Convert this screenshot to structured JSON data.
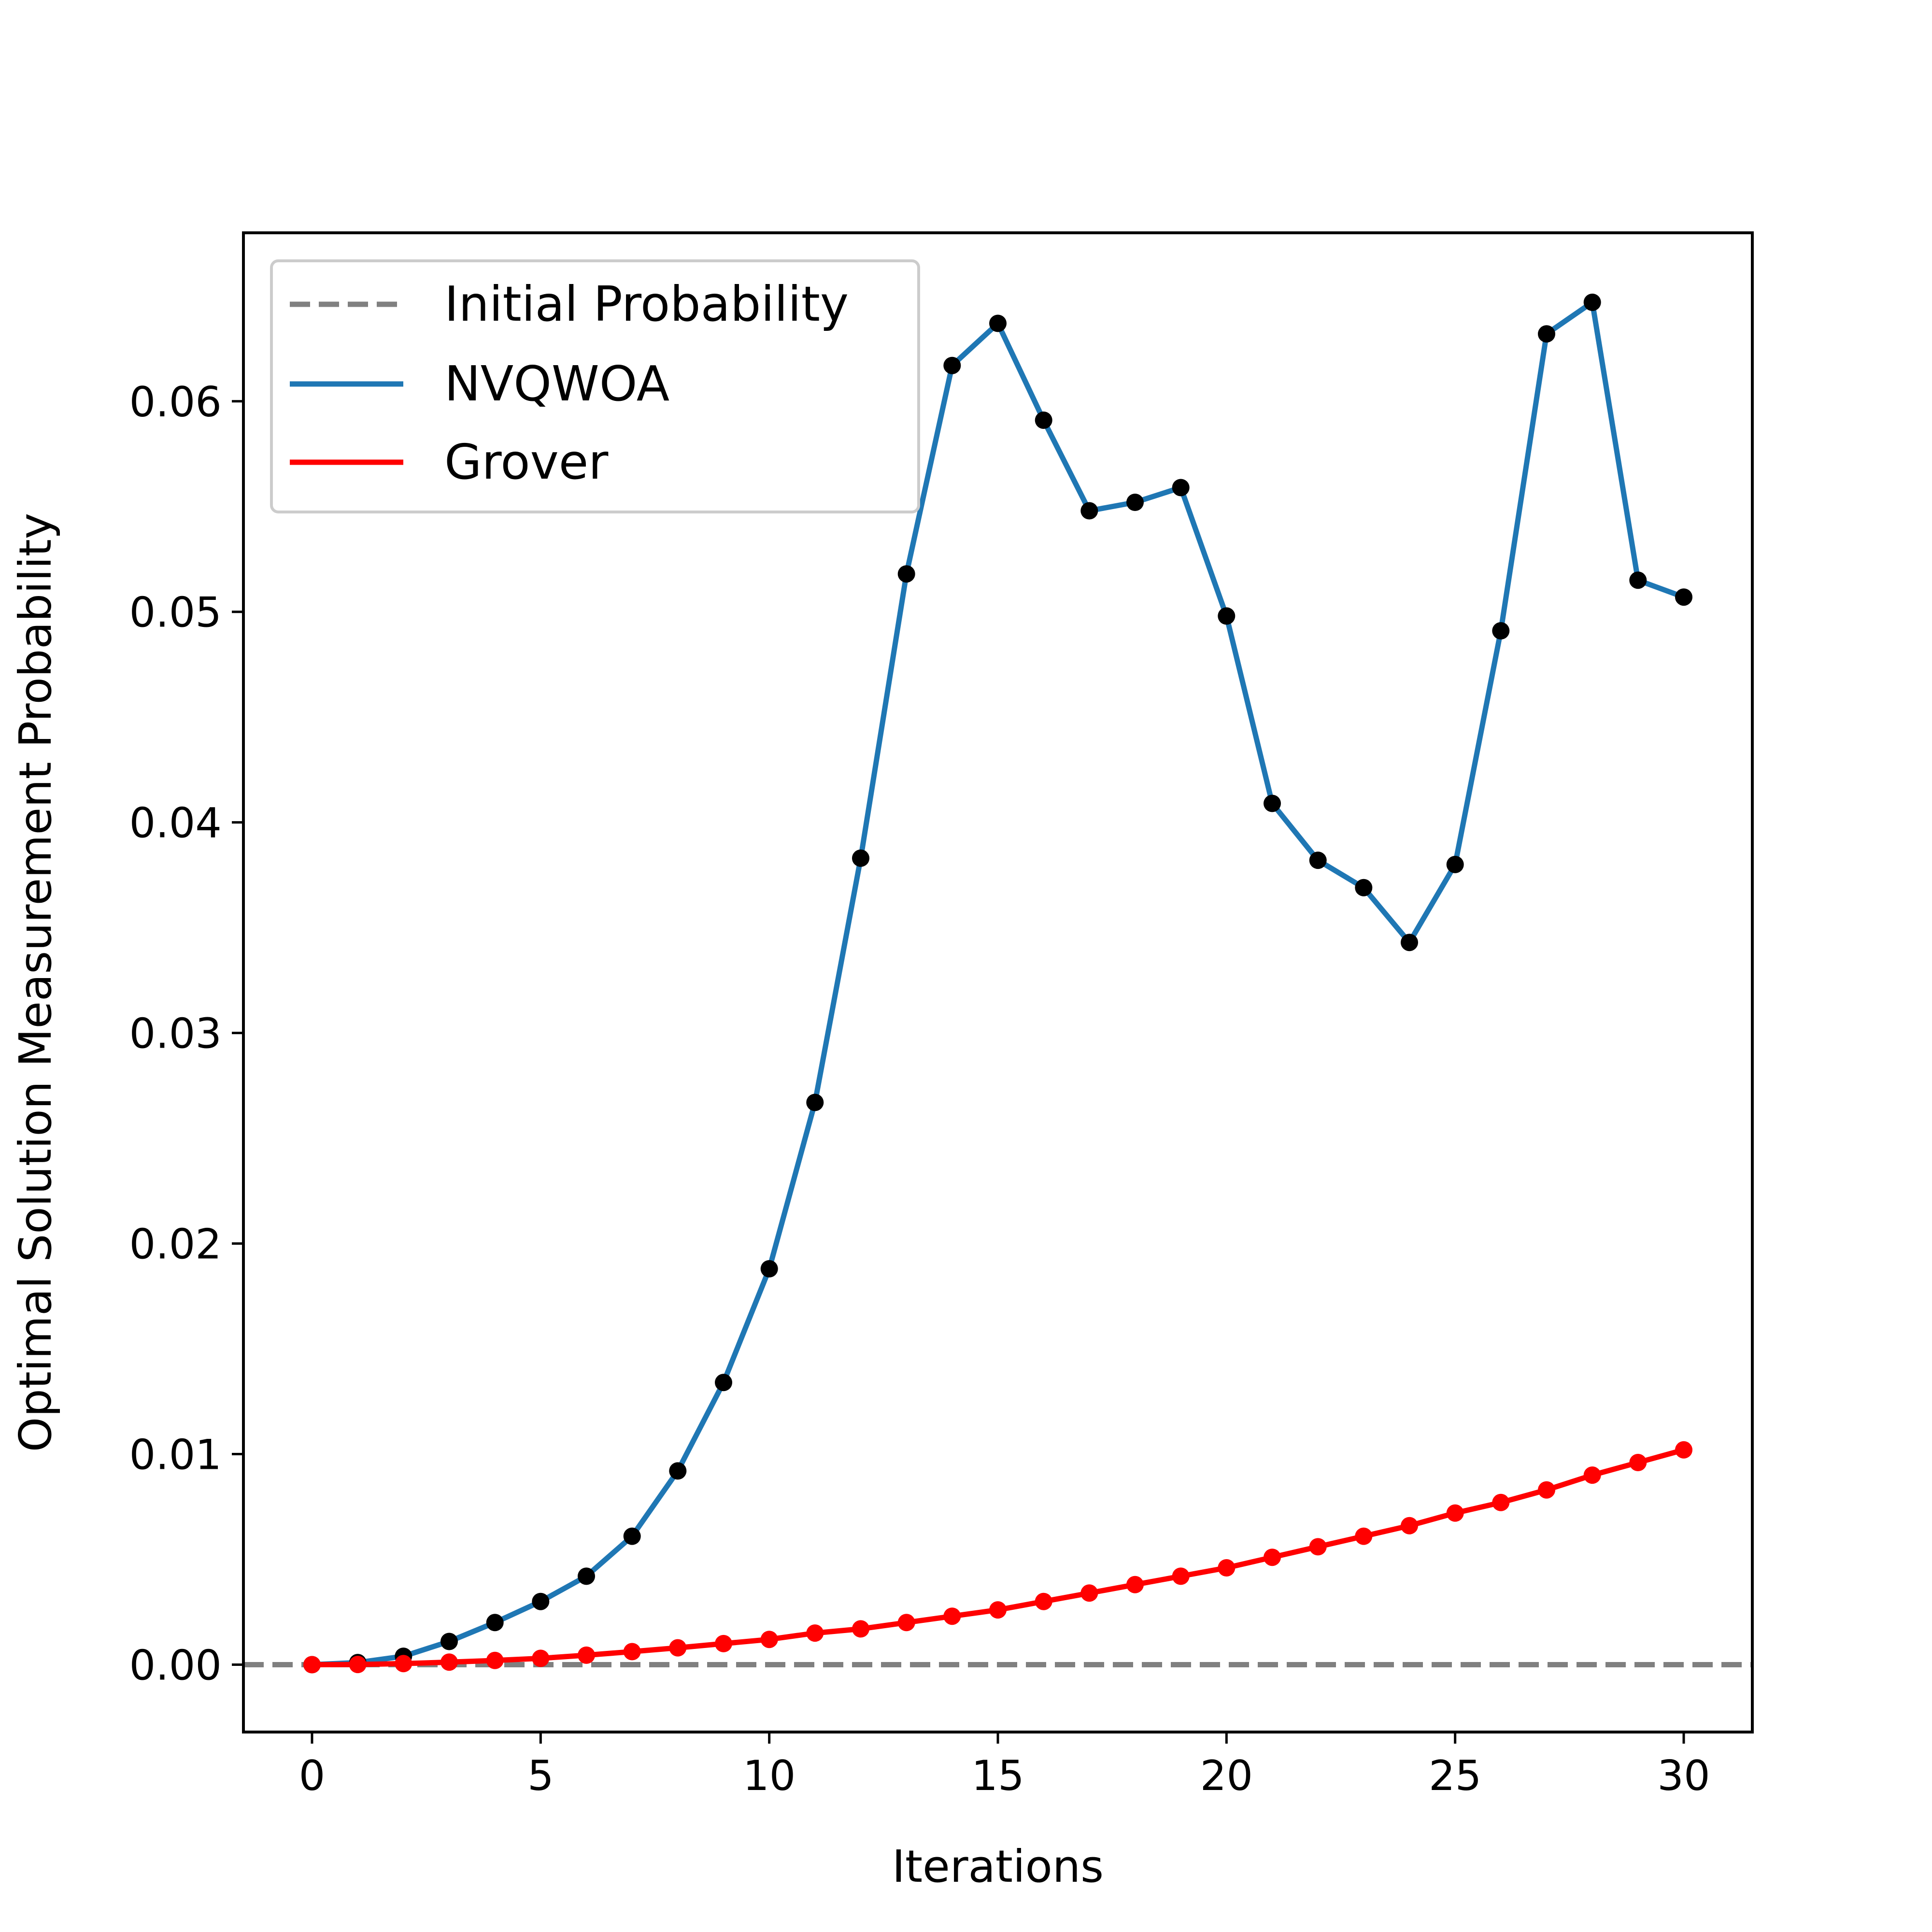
{
  "chart_data": {
    "type": "line",
    "xlabel": "Iterations",
    "ylabel": "Optimal Solution Measurement Probability",
    "xlim": [
      -1.5,
      31.5
    ],
    "ylim": [
      -0.0032,
      0.068
    ],
    "xticks": [
      0,
      5,
      10,
      15,
      20,
      25,
      30
    ],
    "xtick_labels": [
      "0",
      "5",
      "10",
      "15",
      "20",
      "25",
      "30"
    ],
    "yticks": [
      0.0,
      0.01,
      0.02,
      0.03,
      0.04,
      0.05,
      0.06
    ],
    "ytick_labels": [
      "0.00",
      "0.01",
      "0.02",
      "0.03",
      "0.04",
      "0.05",
      "0.06"
    ],
    "grid": false,
    "legend_position": "top-left",
    "legend": [
      "Initial Probability",
      "NVQWOA",
      "Grover"
    ],
    "hline": {
      "name": "Initial Probability",
      "y": 0.0,
      "color": "#808080",
      "style": "dashed"
    },
    "x": [
      0,
      1,
      2,
      3,
      4,
      5,
      6,
      7,
      8,
      9,
      10,
      11,
      12,
      13,
      14,
      15,
      16,
      17,
      18,
      19,
      20,
      21,
      22,
      23,
      24,
      25,
      26,
      27,
      28,
      29,
      30
    ],
    "series": [
      {
        "name": "NVQWOA",
        "color": "#1f77b4",
        "marker_color": "#000000",
        "values": [
          0.0,
          0.0001,
          0.0004,
          0.0011,
          0.002,
          0.003,
          0.0042,
          0.0061,
          0.0092,
          0.0134,
          0.0188,
          0.0267,
          0.0383,
          0.0518,
          0.0617,
          0.0637,
          0.0591,
          0.0548,
          0.0552,
          0.0559,
          0.0498,
          0.0409,
          0.0382,
          0.0369,
          0.0343,
          0.038,
          0.0491,
          0.0632,
          0.0647,
          0.0515,
          0.0507
        ]
      },
      {
        "name": "Grover",
        "color": "#ff0000",
        "marker_color": "#ff0000",
        "values": [
          0.0,
          1e-05,
          5e-05,
          0.00012,
          0.0002,
          0.0003,
          0.00045,
          0.00062,
          0.0008,
          0.001,
          0.0012,
          0.0015,
          0.0017,
          0.002,
          0.0023,
          0.0026,
          0.003,
          0.0034,
          0.0038,
          0.0042,
          0.0046,
          0.0051,
          0.0056,
          0.0061,
          0.0066,
          0.0072,
          0.0077,
          0.0083,
          0.009,
          0.0096,
          0.0102
        ]
      }
    ]
  }
}
